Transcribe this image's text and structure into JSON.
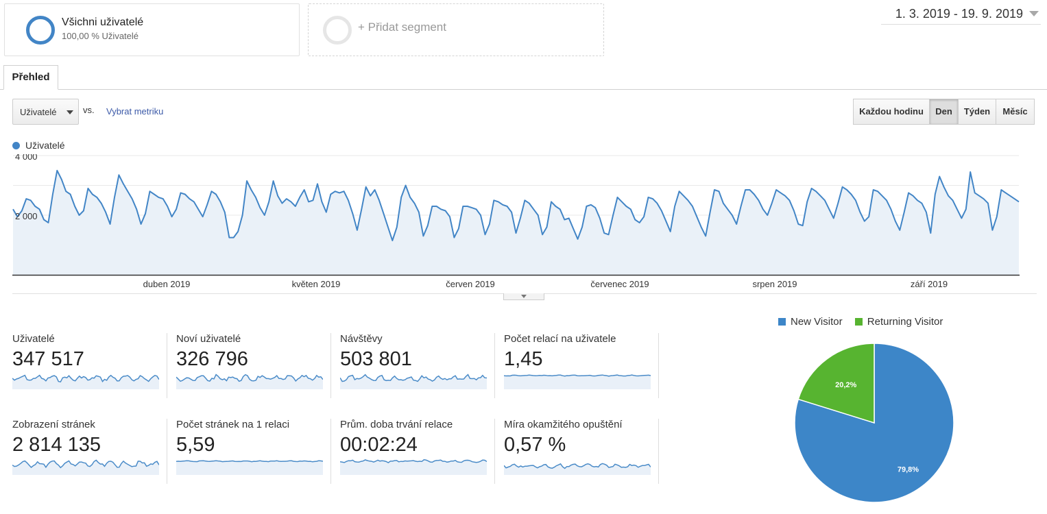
{
  "segments": {
    "all_users": {
      "title": "Všichni uživatelé",
      "subtitle": "100,00 % Uživatelé"
    },
    "add_segment": {
      "label": "+ Přidat segment"
    }
  },
  "date_range": "1. 3. 2019 - 19. 9. 2019",
  "tabs": [
    {
      "label": "Přehled",
      "active": true
    }
  ],
  "controls": {
    "metric_select": "Uživatelé",
    "vs_label": "vs.",
    "select_metric_link": "Vybrat metriku",
    "granularity": [
      {
        "label": "Každou hodinu",
        "active": false
      },
      {
        "label": "Den",
        "active": true
      },
      {
        "label": "Týden",
        "active": false
      },
      {
        "label": "Měsíc",
        "active": false
      }
    ]
  },
  "colors": {
    "accent": "#4285c6",
    "area": "#eaf1f8",
    "new_visitor": "#3d86c8",
    "returning_visitor": "#57b430"
  },
  "chart_data": [
    {
      "type": "area",
      "series": [
        {
          "name": "Uživatelé",
          "values": [
            2200,
            1950,
            2150,
            2550,
            2500,
            2300,
            2200,
            1850,
            1750,
            2700,
            3500,
            3200,
            2800,
            2700,
            2300,
            2000,
            2150,
            2900,
            2700,
            2600,
            2400,
            2100,
            1700,
            2600,
            3350,
            3050,
            2800,
            2550,
            2200,
            1700,
            2050,
            2800,
            2700,
            2600,
            2550,
            2300,
            1950,
            2200,
            2750,
            2700,
            2550,
            2450,
            2200,
            1950,
            2350,
            2800,
            2700,
            2450,
            2100,
            1250,
            1250,
            1450,
            2000,
            3150,
            2850,
            2600,
            2250,
            2000,
            2450,
            3150,
            2650,
            2400,
            2550,
            2450,
            2300,
            2600,
            2850,
            2450,
            2500,
            3050,
            2450,
            2100,
            2700,
            2800,
            2750,
            2800,
            2500,
            2050,
            1500,
            2200,
            2950,
            2650,
            2850,
            2500,
            2050,
            1600,
            1150,
            1600,
            2600,
            3000,
            2600,
            2400,
            2100,
            1300,
            1650,
            2300,
            2300,
            2200,
            2150,
            1950,
            1250,
            1550,
            2300,
            2300,
            2250,
            2200,
            2000,
            1350,
            1700,
            2500,
            2450,
            2350,
            2300,
            2100,
            1400,
            1900,
            2500,
            2400,
            2200,
            2000,
            1350,
            1600,
            2450,
            2300,
            2200,
            1850,
            1900,
            1550,
            1200,
            1600,
            2300,
            2350,
            2250,
            1900,
            1400,
            1350,
            2000,
            2600,
            2450,
            2300,
            2200,
            1850,
            1750,
            1950,
            2600,
            2550,
            2400,
            2150,
            1800,
            1450,
            2300,
            2800,
            2650,
            2500,
            2300,
            1950,
            1600,
            1300,
            2100,
            2850,
            2800,
            2400,
            2200,
            2000,
            1700,
            2300,
            2850,
            2850,
            2700,
            2500,
            2200,
            2000,
            2400,
            2850,
            2750,
            2650,
            2500,
            2150,
            1700,
            1650,
            2450,
            2900,
            2800,
            2650,
            2500,
            2200,
            1900,
            2400,
            2950,
            2850,
            2700,
            2500,
            2100,
            1800,
            1950,
            2850,
            2800,
            2650,
            2500,
            2200,
            1800,
            1500,
            2100,
            2750,
            2650,
            2500,
            2400,
            2100,
            1400,
            2700,
            3300,
            2950,
            2650,
            2500,
            2200,
            1900,
            2200,
            3450,
            2750,
            2650,
            2550,
            2400,
            1500,
            1950,
            2850,
            2750,
            2650,
            2550,
            2450
          ]
        }
      ],
      "x_labels": [
        "duben 2019",
        "květen 2019",
        "červen 2019",
        "červenec 2019",
        "srpen 2019",
        "září 2019"
      ],
      "y_ticks": [
        {
          "value": 2000,
          "label": "2 000"
        },
        {
          "value": 4000,
          "label": "4 000"
        }
      ],
      "ylim": [
        0,
        4000
      ],
      "grid": true,
      "legend": "top-left"
    },
    {
      "type": "pie",
      "legend_position": "top",
      "slices": [
        {
          "name": "New Visitor",
          "value": 79.8,
          "label": "79,8%",
          "color": "#3d86c8"
        },
        {
          "name": "Returning Visitor",
          "value": 20.2,
          "label": "20,2%",
          "color": "#57b430"
        }
      ]
    }
  ],
  "metrics": [
    {
      "label": "Uživatelé",
      "value": "347 517"
    },
    {
      "label": "Noví uživatelé",
      "value": "326 796"
    },
    {
      "label": "Návštěvy",
      "value": "503 801"
    },
    {
      "label": "Počet relací na uživatele",
      "value": "1,45"
    },
    {
      "label": "Zobrazení stránek",
      "value": "2 814 135"
    },
    {
      "label": "Počet stránek na 1 relaci",
      "value": "5,59"
    },
    {
      "label": "Prům. doba trvání relace",
      "value": "00:02:24"
    },
    {
      "label": "Míra okamžitého opuštění",
      "value": "0,57 %"
    }
  ]
}
